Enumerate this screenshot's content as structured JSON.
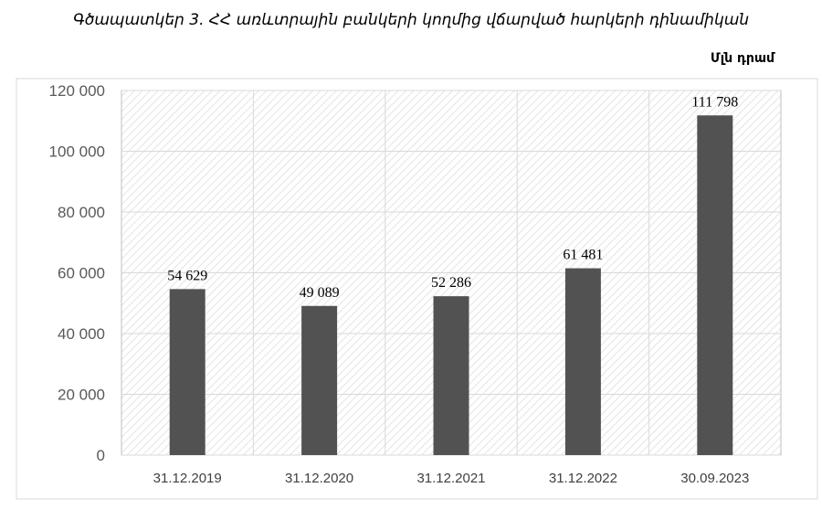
{
  "header": {
    "title": "Գծապատկեր 3. ՀՀ առևտրային բանկերի կողմից վճարված հարկերի դինամիկան",
    "unit": "Մլն դրամ"
  },
  "chart_data": {
    "type": "bar",
    "title": "Գծապատկեր 3. ՀՀ առևտրային բանկերի կողմից վճարված հարկերի դինամիկան",
    "ylabel": "Մլն դրամ",
    "xlabel": "",
    "categories": [
      "31.12.2019",
      "31.12.2020",
      "31.12.2021",
      "31.12.2022",
      "30.09.2023"
    ],
    "values": [
      54629,
      49089,
      52286,
      61481,
      111798
    ],
    "data_labels": [
      "54 629",
      "49 089",
      "52 286",
      "61 481",
      "111 798"
    ],
    "ylim": [
      0,
      120000
    ],
    "yticks": [
      0,
      20000,
      40000,
      60000,
      80000,
      100000,
      120000
    ],
    "ytick_labels": [
      "0",
      "20 000",
      "40 000",
      "60 000",
      "80 000",
      "100 000",
      "120 000"
    ],
    "grid": true,
    "colors": {
      "bar": "#525252",
      "grid": "#d9d9d9",
      "frame": "#bfbfbf"
    }
  }
}
